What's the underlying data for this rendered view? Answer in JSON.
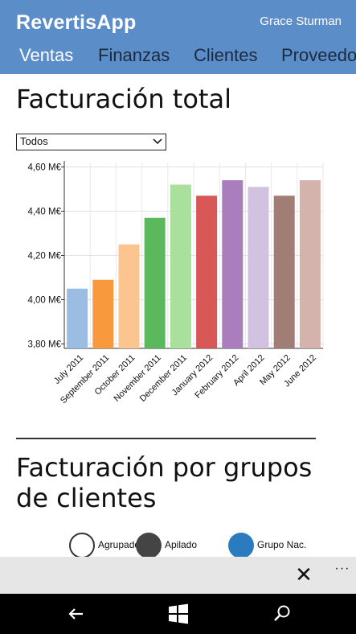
{
  "header": {
    "app_title": "RevertisApp",
    "user_name": "Grace Sturman",
    "background_color": "#5b8dc9",
    "tabs": [
      {
        "label": "Ventas",
        "active": true
      },
      {
        "label": "Finanzas",
        "active": false
      },
      {
        "label": "Clientes",
        "active": false
      },
      {
        "label": "Proveedo",
        "active": false
      }
    ]
  },
  "section1": {
    "title": "Facturación total",
    "filter": {
      "selected": "Todos"
    }
  },
  "chart_data": {
    "type": "bar",
    "categories": [
      "July 2011",
      "September 2011",
      "October 2011",
      "November 2011",
      "December 2011",
      "January 2012",
      "February 2012",
      "April 2012",
      "May 2012",
      "June 2012"
    ],
    "values": [
      4.05,
      4.09,
      4.25,
      4.37,
      4.52,
      4.47,
      4.54,
      4.51,
      4.47,
      4.54
    ],
    "colors": [
      "#9cbde3",
      "#f9993e",
      "#fcc48e",
      "#5cb85c",
      "#a8e09c",
      "#d95757",
      "#a97ebd",
      "#d2c2e2",
      "#a27d76",
      "#d4b3ad"
    ],
    "ylim": [
      3.78,
      4.62
    ],
    "yticks": [
      3.8,
      4.0,
      4.2,
      4.4,
      4.6
    ],
    "ytick_labels": [
      "3,80 M€",
      "4,00 M€",
      "4,20 M€",
      "4,40 M€",
      "4,60 M€"
    ],
    "grid": true,
    "legend": "none"
  },
  "section2": {
    "title": "Facturación por grupos de clientes",
    "legend": [
      {
        "label": "Agrupado",
        "fill": "#ffffff",
        "stroke": "#333333",
        "icon": "hollow-circle"
      },
      {
        "label": "Apilado",
        "fill": "#444444",
        "stroke": "#444444",
        "icon": "filled-circle"
      },
      {
        "label": "Grupo Nac.",
        "fill": "#2b7bc0",
        "stroke": "#2b7bc0",
        "icon": "filled-circle"
      }
    ]
  },
  "app_bar": {
    "close_icon": "close-icon",
    "more_icon": "more-icon",
    "close_glyph": "✕",
    "more_glyph": "···"
  },
  "system_bar": {
    "buttons": [
      "back-icon",
      "windows-icon",
      "search-icon"
    ]
  }
}
